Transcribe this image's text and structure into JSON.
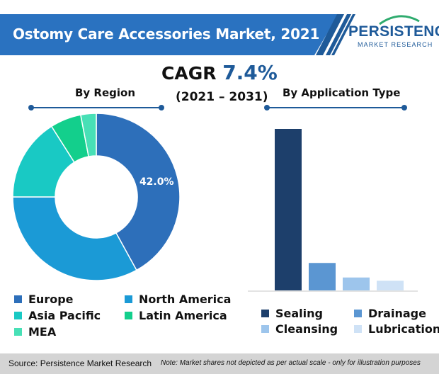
{
  "header": {
    "title": "Ostomy Care Accessories Market, 2021",
    "logo_name": "PERSISTENCE",
    "logo_sub": "MARKET RESEARCH"
  },
  "cagr": {
    "label": "CAGR",
    "value": "7.4%",
    "period": "(2021 – 2031)"
  },
  "colors": {
    "banner": "#2a72c0",
    "accent": "#1e5a99",
    "europe": "#2d6fba",
    "north_america": "#1b9ad6",
    "asia_pacific": "#19c9c4",
    "latin_america": "#13cf8c",
    "mea": "#48e0b6",
    "sealing": "#1d3f6b",
    "drainage": "#5b96d2",
    "cleansing": "#9dc5ec",
    "lubrication": "#cfe2f6"
  },
  "chart_data": [
    {
      "type": "pie",
      "title": "By Region",
      "labels": [
        "Europe",
        "North America",
        "Asia Pacific",
        "Latin America",
        "MEA"
      ],
      "values": [
        42.0,
        33.0,
        16.0,
        6.0,
        3.0
      ],
      "data_labels": [
        "42.0%"
      ],
      "legend": "bottom"
    },
    {
      "type": "bar",
      "title": "By Application Type",
      "categories": [
        "Sealing",
        "Drainage",
        "Cleansing",
        "Lubrication"
      ],
      "values": [
        100,
        17,
        8,
        6
      ],
      "legend": "bottom"
    }
  ],
  "footer": {
    "source": "Source: Persistence Market Research",
    "note": "Note: Market shares not depicted as per actual scale - only for illustration purposes"
  }
}
